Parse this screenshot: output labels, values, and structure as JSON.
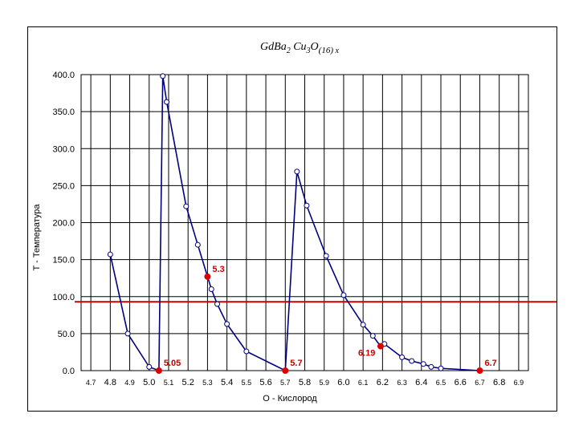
{
  "chart_data": {
    "type": "line",
    "title_parts": {
      "p1": "GdBa",
      "s1": "2",
      "p2": " Cu",
      "s2": "3",
      "p3": "O",
      "s3": "(16)",
      "p4": " x"
    },
    "xlabel": "O -  Кислород",
    "ylabel": "T - Температура",
    "xlim": [
      4.65,
      6.95
    ],
    "ylim": [
      0,
      400
    ],
    "yticks": [
      "0.0",
      "50.0",
      "100.0",
      "150.0",
      "200.0",
      "250.0",
      "300.0",
      "350.0",
      "400.0"
    ],
    "yticks_values": [
      0,
      50,
      100,
      150,
      200,
      250,
      300,
      350,
      400
    ],
    "xticks": [
      {
        "label": "4.7",
        "value": 4.7,
        "size": "small"
      },
      {
        "label": "4.8",
        "value": 4.8,
        "size": "large"
      },
      {
        "label": "4.9",
        "value": 4.9,
        "size": "small"
      },
      {
        "label": "5.0",
        "value": 5.0,
        "size": "large"
      },
      {
        "label": "5.1",
        "value": 5.1,
        "size": "small"
      },
      {
        "label": "5.2",
        "value": 5.2,
        "size": "large"
      },
      {
        "label": "5.3",
        "value": 5.3,
        "size": "small"
      },
      {
        "label": "5.4",
        "value": 5.4,
        "size": "large"
      },
      {
        "label": "5.5",
        "value": 5.5,
        "size": "small"
      },
      {
        "label": "5.6",
        "value": 5.6,
        "size": "large"
      },
      {
        "label": "5.7",
        "value": 5.7,
        "size": "small"
      },
      {
        "label": "5.8",
        "value": 5.8,
        "size": "large"
      },
      {
        "label": "5.9",
        "value": 5.9,
        "size": "small"
      },
      {
        "label": "6.0",
        "value": 6.0,
        "size": "large"
      },
      {
        "label": "6.1",
        "value": 6.1,
        "size": "small"
      },
      {
        "label": "6.2",
        "value": 6.2,
        "size": "large"
      },
      {
        "label": "6.3",
        "value": 6.3,
        "size": "small"
      },
      {
        "label": "6.4",
        "value": 6.4,
        "size": "large"
      },
      {
        "label": "6.5",
        "value": 6.5,
        "size": "small"
      },
      {
        "label": "6.6",
        "value": 6.6,
        "size": "large"
      },
      {
        "label": "6.7",
        "value": 6.7,
        "size": "small"
      },
      {
        "label": "6.8",
        "value": 6.8,
        "size": "large"
      },
      {
        "label": "6.9",
        "value": 6.9,
        "size": "small"
      }
    ],
    "grid": true,
    "line_color": "#000080",
    "marker_color": "#ffffff",
    "highlight_color": "#dd0000",
    "threshold": {
      "value": 93,
      "color": "#cc0000"
    },
    "series": [
      {
        "points": [
          [
            4.8,
            157
          ],
          [
            4.89,
            50
          ],
          [
            5.0,
            5
          ],
          [
            5.05,
            0
          ],
          [
            5.07,
            398
          ],
          [
            5.09,
            363
          ],
          [
            5.19,
            222
          ],
          [
            5.25,
            170
          ],
          [
            5.3,
            127
          ],
          [
            5.32,
            110
          ],
          [
            5.35,
            90
          ],
          [
            5.4,
            63
          ],
          [
            5.5,
            26
          ],
          [
            5.7,
            0
          ],
          [
            5.76,
            269
          ],
          [
            5.81,
            223
          ],
          [
            5.91,
            155
          ],
          [
            6.0,
            102
          ],
          [
            6.1,
            62
          ],
          [
            6.15,
            47
          ],
          [
            6.19,
            33
          ],
          [
            6.21,
            36
          ],
          [
            6.3,
            18
          ],
          [
            6.35,
            13
          ],
          [
            6.41,
            9
          ],
          [
            6.45,
            5
          ],
          [
            6.5,
            3
          ],
          [
            6.7,
            0
          ]
        ]
      }
    ],
    "highlights": [
      {
        "x": 5.05,
        "y": 0,
        "label": "5.05"
      },
      {
        "x": 5.3,
        "y": 127,
        "label": "5.3"
      },
      {
        "x": 5.7,
        "y": 0,
        "label": "5.7"
      },
      {
        "x": 6.19,
        "y": 33,
        "label": "6.19"
      },
      {
        "x": 6.7,
        "y": 0,
        "label": "6.7"
      }
    ]
  }
}
